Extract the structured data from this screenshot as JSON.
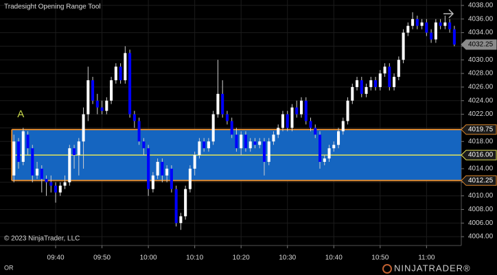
{
  "chart_data": {
    "type": "candlestick",
    "title": "Tradesight Opening Range Tool",
    "copyright": "© 2023 NinjaTrader, LLC",
    "indicator_label": "OR",
    "logo": "NINJATRADER®",
    "up_color": "#ffffff",
    "down_color": "#0000ff",
    "grid": true,
    "open": [
      4013,
      4018,
      4015,
      4019,
      4017,
      4013,
      4014,
      4012.5,
      4012,
      4011.5,
      4010.5,
      4011.5,
      4012,
      4017,
      4016,
      4018,
      4022,
      4027,
      4024,
      4023,
      4022.5,
      4024,
      4027,
      4029,
      4027,
      4031,
      4022,
      4021,
      4018,
      4017,
      4011,
      4013,
      4015,
      4013,
      4014,
      4011,
      4006,
      4007,
      4011,
      4014,
      4016,
      4018,
      4017,
      4018,
      4022,
      4025,
      4022,
      4021,
      4019,
      4017,
      4019,
      4017,
      4018,
      4017.5,
      4018,
      4015,
      4018,
      4019,
      4020,
      4022,
      4020,
      4023,
      4022,
      4024,
      4021,
      4020,
      4019,
      4015,
      4015.5,
      4017,
      4017.5,
      4019.5,
      4021,
      4024,
      4026,
      4027,
      4025,
      4026,
      4027,
      4026,
      4028,
      4029,
      4026,
      4027.5,
      4030,
      4034,
      4035,
      4036,
      4035,
      4035.5,
      4034,
      4033,
      4035.5,
      4035,
      4035.5,
      4034.5
    ],
    "high": [
      4019,
      4018.5,
      4020,
      4019.5,
      4017.5,
      4015,
      4014.5,
      4013,
      4013,
      4012,
      4012,
      4013,
      4017.5,
      4017.5,
      4018.5,
      4023,
      4029,
      4027.5,
      4025,
      4024,
      4024.5,
      4027.5,
      4029.5,
      4029.5,
      4032,
      4031.5,
      4022.5,
      4021.5,
      4018.5,
      4017.5,
      4013.5,
      4015.5,
      4015.5,
      4014.5,
      4014.5,
      4011.5,
      4007.5,
      4011.5,
      4014.5,
      4016.5,
      4018.5,
      4018.5,
      4018.5,
      4022.5,
      4030,
      4027,
      4022.5,
      4021.5,
      4020,
      4019.5,
      4019.5,
      4018.5,
      4018.5,
      4018.5,
      4018.5,
      4018.5,
      4019.5,
      4020.5,
      4022.5,
      4022.5,
      4023.5,
      4024,
      4024.5,
      4024.5,
      4021.5,
      4020.5,
      4019.5,
      4016,
      4017.5,
      4018,
      4020,
      4021.5,
      4024.5,
      4026.5,
      4027.5,
      4027.5,
      4026.5,
      4027.5,
      4027.5,
      4028.5,
      4029.5,
      4029.5,
      4028,
      4030.5,
      4034.5,
      4035.5,
      4037,
      4036.5,
      4036,
      4036,
      4034.5,
      4036,
      4036,
      4036.5,
      4036,
      4035
    ],
    "low": [
      4012,
      4014,
      4014.5,
      4016,
      4012,
      4012.5,
      4010.5,
      4010,
      4010.5,
      4009,
      4010,
      4011,
      4011.5,
      4014,
      4013,
      4014,
      4021,
      4023.5,
      4022,
      4022,
      4022,
      4023.5,
      4026.5,
      4026.5,
      4026.5,
      4021.5,
      4020,
      4017.5,
      4016,
      4010,
      4010.5,
      4012.5,
      4012,
      4012,
      4010.5,
      4005.5,
      4005,
      4006.5,
      4010.5,
      4013,
      4015.5,
      4016.5,
      4016.5,
      4017.5,
      4021.5,
      4021.5,
      4020.5,
      4018.5,
      4016.5,
      4016,
      4016.5,
      4016.5,
      4017,
      4017,
      4013,
      4014.5,
      4017.5,
      4018.5,
      4019.5,
      4019.5,
      4019.5,
      4021.5,
      4021.5,
      4020.5,
      4019.5,
      4018.5,
      4014,
      4014.5,
      4015,
      4016.5,
      4017,
      4019,
      4020.5,
      4023.5,
      4025.5,
      4024.5,
      4024.5,
      4025.5,
      4025.5,
      4025.5,
      4027.5,
      4025.5,
      4025.5,
      4027,
      4029.5,
      4033.5,
      4034.5,
      4034.5,
      4034.5,
      4033.5,
      4032.5,
      4032.5,
      4034.5,
      4034.5,
      4034,
      4032
    ],
    "close": [
      4018,
      4015,
      4019.5,
      4017,
      4013,
      4014,
      4012.5,
      4012,
      4011.5,
      4010.5,
      4011.5,
      4012,
      4017,
      4016,
      4018,
      4022,
      4027,
      4024,
      4023,
      4022.5,
      4024,
      4027,
      4029,
      4027,
      4031,
      4022,
      4021,
      4018,
      4017,
      4011,
      4013,
      4015,
      4013,
      4014,
      4011,
      4006,
      4007,
      4011,
      4014,
      4016,
      4018,
      4017,
      4018,
      4022,
      4025,
      4022,
      4021,
      4019,
      4017,
      4019,
      4017,
      4018,
      4017.5,
      4018,
      4015,
      4018,
      4019,
      4020,
      4022,
      4020,
      4023,
      4022,
      4024,
      4021,
      4020,
      4019,
      4015,
      4015.5,
      4017,
      4017.5,
      4019.5,
      4021,
      4024,
      4026,
      4027,
      4025,
      4026,
      4027,
      4026,
      4028,
      4029,
      4026,
      4027.5,
      4030,
      4034,
      4035,
      4036,
      4035,
      4035.5,
      4034,
      4033,
      4035.5,
      4035,
      4035.5,
      4034.5,
      4032.25
    ],
    "xlim": [
      -3,
      96.5
    ],
    "xticks": [
      {
        "value": 9,
        "label": "09:40"
      },
      {
        "value": 19,
        "label": "09:50"
      },
      {
        "value": 29,
        "label": "10:00"
      },
      {
        "value": 39,
        "label": "10:10"
      },
      {
        "value": 49,
        "label": "10:20"
      },
      {
        "value": 59,
        "label": "10:30"
      },
      {
        "value": 69,
        "label": "10:40"
      },
      {
        "value": 79,
        "label": "10:50"
      },
      {
        "value": 89,
        "label": "11:00"
      }
    ],
    "ylim": [
      4002.7,
      4038.8
    ],
    "yticks": [
      {
        "value": 4004,
        "label": "4004.00"
      },
      {
        "value": 4006,
        "label": "4006.00"
      },
      {
        "value": 4008,
        "label": "4008.00"
      },
      {
        "value": 4010,
        "label": "4010.00"
      },
      {
        "value": 4012,
        "label": "4012.00"
      },
      {
        "value": 4014,
        "label": "4014.00"
      },
      {
        "value": 4016,
        "label": "4016.00"
      },
      {
        "value": 4018,
        "label": "4018.00"
      },
      {
        "value": 4020,
        "label": "4020.00"
      },
      {
        "value": 4022,
        "label": "4022.00"
      },
      {
        "value": 4024,
        "label": "4024.00"
      },
      {
        "value": 4026,
        "label": "4026.00"
      },
      {
        "value": 4028,
        "label": "4028.00"
      },
      {
        "value": 4030,
        "label": "4030.00"
      },
      {
        "value": 4032,
        "label": "4032.00"
      },
      {
        "value": 4034,
        "label": "4034.00"
      },
      {
        "value": 4036,
        "label": "4036.00"
      },
      {
        "value": 4038,
        "label": "4038.00"
      }
    ],
    "opening_range": {
      "start": 0,
      "high": {
        "value": 4019.75,
        "label": "4019.75"
      },
      "mid": {
        "value": 4016,
        "label": "4016.00"
      },
      "low": {
        "value": 4012.25,
        "label": "4012.25"
      },
      "fill_color": "#1565c0",
      "border_color": "#e0892d",
      "mid_color": "#e6e65a",
      "marker": "A",
      "marker_color": "#c8d84a"
    },
    "last_price": {
      "value": 4032.25,
      "label": "4032.25"
    }
  }
}
